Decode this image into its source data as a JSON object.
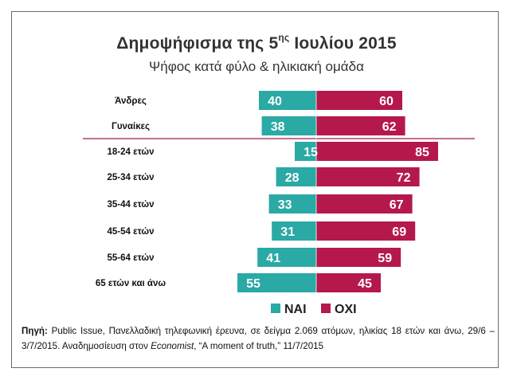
{
  "header": {
    "title_prefix": "Δημοψήφισμα της 5",
    "title_sup": "ης",
    "title_suffix": " Ιουλίου 2015",
    "subtitle": "Ψήφος κατά φύλο & ηλικιακή ομάδα"
  },
  "chart_data": {
    "type": "bar",
    "orientation": "horizontal-diverging",
    "title": "Δημοψήφισμα της 5ης Ιουλίου 2015",
    "subtitle": "Ψήφος κατά φύλο & ηλικιακή ομάδα",
    "categories": [
      "Άνδρες",
      "Γυναίκες",
      "18-24 ετών",
      "25-34 ετών",
      "35-44 ετών",
      "45-54 ετών",
      "55-64 ετών",
      "65 ετών και άνω"
    ],
    "series": [
      {
        "name": "ΝΑΙ",
        "values": [
          40,
          38,
          15,
          28,
          33,
          31,
          41,
          55
        ],
        "color": "#2aa9a5"
      },
      {
        "name": "ΟΧΙ",
        "values": [
          60,
          62,
          85,
          72,
          67,
          69,
          59,
          45
        ],
        "color": "#b5194c"
      }
    ],
    "legend_position": "bottom-center",
    "grid": false,
    "separator_color": "#a01a4a"
  },
  "source": {
    "label": "Πηγή:",
    "text_1": " Public Issue, Πανελλαδική τηλεφωνική έρευνα, σε δείγμα 2.069 ατόμων, ηλικίας 18 ετών και άνω, 29/6 – 3/7/2015.  Αναδημοσίευση στον ",
    "publication": "Economist",
    "text_2": ", “A moment of truth,” 11/7/2015"
  }
}
